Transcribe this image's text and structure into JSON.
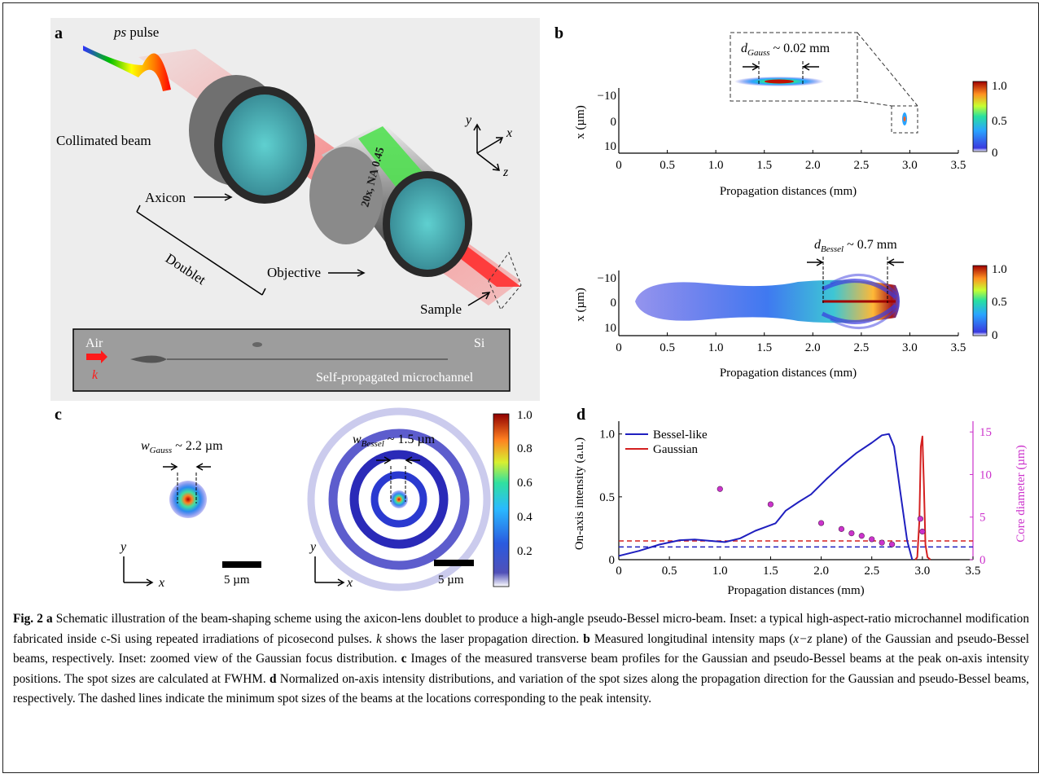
{
  "panel_labels": {
    "a": "a",
    "b": "b",
    "c": "c",
    "d": "d"
  },
  "panel_a": {
    "ps_pulse_label": "ps pulse",
    "collimated_beam": "Collimated beam",
    "axicon": "Axicon",
    "doublet": "Doublet",
    "objective": "Objective",
    "objective_text": "20x, NA 0.45",
    "sample": "Sample",
    "axis_y": "y",
    "axis_x": "x",
    "axis_z": "z",
    "inset": {
      "air": "Air",
      "si": "Si",
      "k": "k",
      "caption": "Self-propagated microchannel"
    }
  },
  "panel_b": {
    "gauss_annotation_sym": "d",
    "gauss_annotation_sub": "Gauss",
    "gauss_annotation_val": " ~ 0.02 mm",
    "bessel_annotation_sym": "d",
    "bessel_annotation_sub": "Bessel",
    "bessel_annotation_val": " ~ 0.7 mm",
    "ylabel": "x (µm)",
    "yticks": [
      "−10",
      "0",
      "10"
    ],
    "xticks": [
      "0",
      "0.5",
      "1.0",
      "1.5",
      "2.0",
      "2.5",
      "3.0",
      "3.5"
    ],
    "xlabel": "Propagation distances (mm)",
    "colorbar_ticks": [
      "1.0",
      "0.5",
      "0"
    ]
  },
  "panel_c": {
    "gauss_sym": "w",
    "gauss_sub": "Gauss",
    "gauss_val": " ~ 2.2 µm",
    "bessel_sym": "w",
    "bessel_sub": "Bessel",
    "bessel_val": " ~ 1.5 µm",
    "scale_label": "5 µm",
    "axis_y": "y",
    "axis_x": "x",
    "colorbar_ticks": [
      "1.0",
      "0.8",
      "0.6",
      "0.4",
      "0.2"
    ]
  },
  "chart_data": {
    "type": "line",
    "title": "",
    "xlabel": "Propagation distances (mm)",
    "ylabel": "On-axis intensity (a.u.)",
    "y2label": "Core diameter (µm)",
    "xlim": [
      0,
      3.5
    ],
    "ylim": [
      0,
      1.05
    ],
    "y2lim": [
      0,
      15.5
    ],
    "xticks": [
      "0",
      "0.5",
      "1.0",
      "1.5",
      "2.0",
      "2.5",
      "3.0",
      "3.5"
    ],
    "yticks": [
      "0",
      "0.5",
      "1.0"
    ],
    "y2ticks": [
      "0",
      "5",
      "10",
      "15"
    ],
    "legend_position": "top-left",
    "series": [
      {
        "name": "Bessel-like",
        "color": "#1f1fbf",
        "x": [
          0,
          0.2,
          0.4,
          0.6,
          0.75,
          0.9,
          1.05,
          1.2,
          1.35,
          1.45,
          1.55,
          1.65,
          1.78,
          1.9,
          2.05,
          2.2,
          2.35,
          2.5,
          2.6,
          2.67,
          2.72,
          2.78,
          2.85,
          2.9
        ],
        "y": [
          0.03,
          0.07,
          0.12,
          0.155,
          0.16,
          0.15,
          0.14,
          0.17,
          0.23,
          0.26,
          0.29,
          0.39,
          0.46,
          0.52,
          0.64,
          0.75,
          0.85,
          0.93,
          0.99,
          1.0,
          0.9,
          0.55,
          0.15,
          0.0
        ]
      },
      {
        "name": "Gaussian",
        "color": "#d42020",
        "x": [
          2.93,
          2.95,
          2.97,
          2.985,
          3.0,
          3.015,
          3.03,
          3.05,
          3.08
        ],
        "y": [
          0.0,
          0.02,
          0.3,
          0.9,
          0.98,
          0.6,
          0.12,
          0.02,
          0.0
        ]
      }
    ],
    "scatter": {
      "name": "Core diameter",
      "color": "#cc33cc",
      "axis": "y2",
      "x": [
        1.0,
        1.5,
        2.0,
        2.2,
        2.3,
        2.4,
        2.5,
        2.6,
        2.7,
        2.98,
        3.0
      ],
      "y": [
        8.3,
        6.5,
        4.3,
        3.6,
        3.1,
        2.8,
        2.4,
        2.0,
        1.8,
        4.8,
        3.3
      ]
    },
    "reference_lines": [
      {
        "color": "#d42020",
        "y2": 2.2
      },
      {
        "color": "#1f1fbf",
        "y2": 1.5
      }
    ]
  },
  "caption": {
    "fig_label": "Fig. 2",
    "a_label": "a",
    "a_text": "Schematic illustration of the beam-shaping scheme using the axicon-lens doublet to produce a high-angle pseudo-Bessel micro-beam. Inset: a typical high-aspect-ratio microchannel modification fabricated inside c-Si using repeated irradiations of picosecond pulses.",
    "k_symbol": "k",
    "k_text": "shows the laser propagation direction.",
    "b_label": "b",
    "b_text_1": "Measured longitudinal intensity maps (",
    "b_xz": "x−z",
    "b_text_2": "plane) of the Gaussian and pseudo-Bessel beams, respectively. Inset: zoomed view of the Gaussian focus distribution.",
    "c_label": "c",
    "c_text": "Images of the measured transverse beam profiles for the Gaussian and pseudo-Bessel beams at the peak on-axis intensity positions. The spot sizes are calculated at FWHM.",
    "d_label": "d",
    "d_text": "Normalized on-axis intensity distributions, and variation of the spot sizes along the propagation direction for the Gaussian and pseudo-Bessel beams, respectively. The dashed lines indicate the minimum spot sizes of the beams at the locations corresponding to the peak intensity."
  }
}
